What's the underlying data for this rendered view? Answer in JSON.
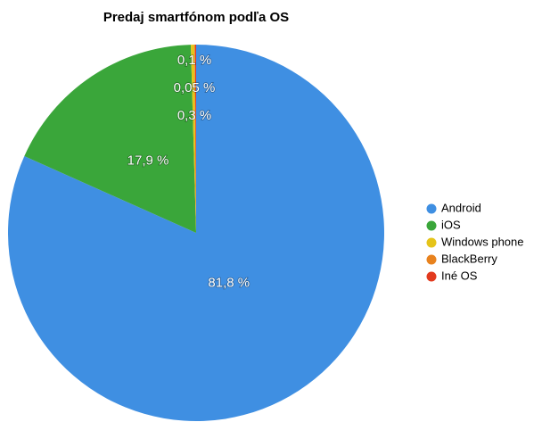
{
  "chart_data": {
    "type": "pie",
    "title": "Predaj smartfónom podľa OS",
    "categories": [
      "Android",
      "iOS",
      "Windows phone",
      "BlackBerry",
      "Iné OS"
    ],
    "values": [
      81.8,
      17.9,
      0.3,
      0.05,
      0.1
    ],
    "value_labels": [
      "81,8 %",
      "17,9 %",
      "0,3 %",
      "0,05 %",
      "0,1 %"
    ],
    "colors": [
      "#3f8fe2",
      "#3aa63a",
      "#e5c41a",
      "#e8821e",
      "#e23a1e"
    ],
    "legend": "right"
  }
}
